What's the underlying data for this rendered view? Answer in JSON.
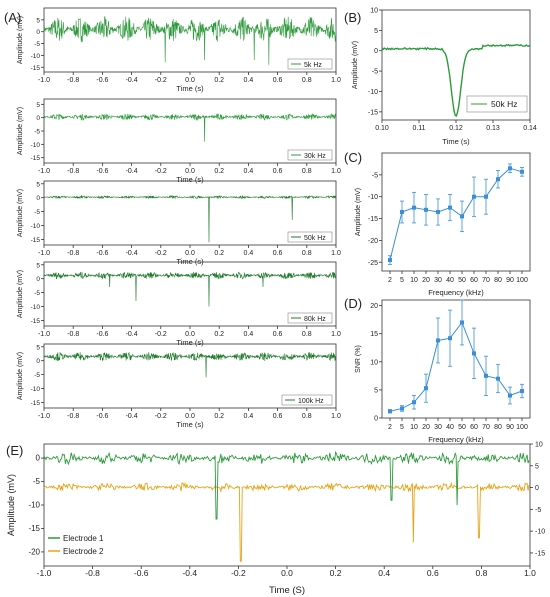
{
  "colors": {
    "green": "#2e9a3c",
    "darkgreen": "#1f7a2a",
    "orange": "#e8a317",
    "blue": "#3a8fd6",
    "axis": "#333333"
  },
  "panels": {
    "A": {
      "label": "(A)",
      "xlabel": "Time (s)",
      "ylabel": "Amplitude (mV)",
      "xlim": [
        -1.0,
        1.0
      ],
      "xticks": [
        "-1.0",
        "-0.8",
        "-0.6",
        "-0.4",
        "-0.2",
        "0.0",
        "0.2",
        "0.4",
        "0.6",
        "0.8",
        "1.0"
      ],
      "subplots": [
        {
          "legend": "5k Hz",
          "ylim": [
            -17,
            10
          ],
          "yticks": [
            5,
            0,
            -5,
            -10,
            -15
          ],
          "noise": 5.5,
          "baseline": 1.0,
          "spikes": [
            {
              "x": -0.17,
              "y": -13
            },
            {
              "x": 0.1,
              "y": -12
            },
            {
              "x": 0.44,
              "y": -12
            },
            {
              "x": 0.54,
              "y": -14
            }
          ]
        },
        {
          "legend": "30k Hz",
          "ylim": [
            -17,
            7
          ],
          "yticks": [
            5,
            0,
            -5,
            -10,
            -15
          ],
          "noise": 1.2,
          "baseline": 0.3,
          "spikes": [
            {
              "x": 0.1,
              "y": -9
            }
          ]
        },
        {
          "legend": "50k Hz",
          "ylim": [
            -17,
            6
          ],
          "yticks": [
            5,
            0,
            -5,
            -10,
            -15
          ],
          "noise": 0.5,
          "baseline": 0.2,
          "spikes": [
            {
              "x": 0.13,
              "y": -16
            },
            {
              "x": 0.7,
              "y": -8
            }
          ]
        },
        {
          "legend": "80k Hz",
          "ylim": [
            -17,
            6
          ],
          "yticks": [
            5,
            0,
            -5,
            -10,
            -15
          ],
          "noise": 1.3,
          "baseline": 1.2,
          "spikes": [
            {
              "x": -0.55,
              "y": -3
            },
            {
              "x": -0.37,
              "y": -8
            },
            {
              "x": 0.13,
              "y": -10
            },
            {
              "x": 0.5,
              "y": -3
            }
          ]
        },
        {
          "legend": "100k Hz",
          "ylim": [
            -17,
            6
          ],
          "yticks": [
            5,
            0,
            -5,
            -10,
            -15
          ],
          "noise": 1.6,
          "baseline": 1.5,
          "spikes": [
            {
              "x": 0.11,
              "y": -6
            }
          ]
        }
      ]
    },
    "B": {
      "label": "(B)",
      "xlabel": "Time (s)",
      "ylabel": "Amplitude (mV)",
      "legend": "50k Hz",
      "xlim": [
        0.1,
        0.14
      ],
      "ylim": [
        -17,
        10
      ],
      "xticks": [
        "0.10",
        "0.11",
        "0.12",
        "0.13",
        "0.14"
      ],
      "yticks": [
        10,
        5,
        0,
        -5,
        -10,
        -15
      ],
      "spike": {
        "center": 0.12,
        "min": -16,
        "width": 0.0018,
        "baseline": 0.5
      }
    },
    "C": {
      "label": "(C)",
      "xlabel": "Frequency (kHz)",
      "ylabel": "Amplitude (mV)",
      "ylim": [
        -27,
        0
      ],
      "yticks": [
        -5,
        -10,
        -15,
        -20,
        -25
      ],
      "categories": [
        "2",
        "5",
        "10",
        "20",
        "30",
        "40",
        "50",
        "60",
        "70",
        "80",
        "90",
        "100"
      ],
      "values": [
        -24.5,
        -13.5,
        -12.5,
        -13,
        -13.5,
        -12.5,
        -14.5,
        -10,
        -10,
        -6,
        -3.5,
        -4.3
      ],
      "errors": [
        1,
        2.5,
        3.5,
        3.5,
        3,
        3,
        3.5,
        4.5,
        4,
        2,
        1,
        1
      ]
    },
    "D": {
      "label": "(D)",
      "xlabel": "Frequency (kHz)",
      "ylabel": "SNR (%)",
      "ylim": [
        0,
        21
      ],
      "yticks": [
        0,
        5,
        10,
        15,
        20
      ],
      "categories": [
        "2",
        "5",
        "10",
        "20",
        "30",
        "40",
        "50",
        "60",
        "70",
        "80",
        "90",
        "100"
      ],
      "values": [
        1.2,
        1.7,
        2.8,
        5.3,
        13.8,
        14.2,
        17,
        11.5,
        7.5,
        7,
        4,
        4.8
      ],
      "errors": [
        0.3,
        0.5,
        1.2,
        2.5,
        4,
        5,
        4,
        4.5,
        3.5,
        2.5,
        1.5,
        1.2
      ]
    },
    "E": {
      "label": "(E)",
      "xlabel": "Time (S)",
      "ylabel": "Amplitude (mV)",
      "xlim": [
        -1.0,
        1.0
      ],
      "xticks": [
        "-1.0",
        "-0.8",
        "-0.6",
        "-0.4",
        "-0.2",
        "0.0",
        "0.2",
        "0.4",
        "0.6",
        "0.8",
        "1.0"
      ],
      "ylim_left": [
        -23,
        3
      ],
      "yticks_left": [
        0,
        -5,
        -10,
        -15,
        -20
      ],
      "ylim_right": [
        -18,
        10
      ],
      "yticks_right": [
        10,
        5,
        0,
        -5,
        -10,
        -15
      ],
      "legend": [
        "Electrode 1",
        "Electrode 2"
      ],
      "electrode1": {
        "baseline": 0,
        "noise": 1.3,
        "spikes": [
          {
            "x": -0.29,
            "y": -13
          },
          {
            "x": 0.43,
            "y": -9
          },
          {
            "x": 0.7,
            "y": -10
          }
        ]
      },
      "electrode2": {
        "baseline": -6.2,
        "noise": 0.9,
        "spikes": [
          {
            "x": -0.19,
            "y": -22
          },
          {
            "x": 0.52,
            "y": -18
          },
          {
            "x": 0.79,
            "y": -17
          }
        ]
      }
    }
  },
  "chart_data": [
    {
      "type": "line",
      "panel": "A",
      "legend": "5k Hz",
      "xlabel": "Time (s)",
      "ylabel": "Amplitude (mV)",
      "xlim": [
        -1,
        1
      ],
      "ylim": [
        -17,
        10
      ]
    },
    {
      "type": "line",
      "panel": "A",
      "legend": "30k Hz",
      "xlabel": "Time (s)",
      "ylabel": "Amplitude (mV)",
      "xlim": [
        -1,
        1
      ],
      "ylim": [
        -17,
        7
      ]
    },
    {
      "type": "line",
      "panel": "A",
      "legend": "50k Hz",
      "xlabel": "Time (s)",
      "ylabel": "Amplitude (mV)",
      "xlim": [
        -1,
        1
      ],
      "ylim": [
        -17,
        6
      ]
    },
    {
      "type": "line",
      "panel": "A",
      "legend": "80k Hz",
      "xlabel": "Time (s)",
      "ylabel": "Amplitude (mV)",
      "xlim": [
        -1,
        1
      ],
      "ylim": [
        -17,
        6
      ]
    },
    {
      "type": "line",
      "panel": "A",
      "legend": "100k Hz",
      "xlabel": "Time (s)",
      "ylabel": "Amplitude (mV)",
      "xlim": [
        -1,
        1
      ],
      "ylim": [
        -17,
        6
      ]
    },
    {
      "type": "line",
      "panel": "B",
      "legend": "50k Hz",
      "xlabel": "Time (s)",
      "ylabel": "Amplitude (mV)",
      "xlim": [
        0.1,
        0.14
      ],
      "ylim": [
        -17,
        10
      ]
    },
    {
      "type": "line",
      "panel": "C",
      "xlabel": "Frequency (kHz)",
      "ylabel": "Amplitude (mV)",
      "categories": [
        "2",
        "5",
        "10",
        "20",
        "30",
        "40",
        "50",
        "60",
        "70",
        "80",
        "90",
        "100"
      ],
      "values": [
        -24.5,
        -13.5,
        -12.5,
        -13,
        -13.5,
        -12.5,
        -14.5,
        -10,
        -10,
        -6,
        -3.5,
        -4.3
      ]
    },
    {
      "type": "line",
      "panel": "D",
      "xlabel": "Frequency (kHz)",
      "ylabel": "SNR (%)",
      "categories": [
        "2",
        "5",
        "10",
        "20",
        "30",
        "40",
        "50",
        "60",
        "70",
        "80",
        "90",
        "100"
      ],
      "values": [
        1.2,
        1.7,
        2.8,
        5.3,
        13.8,
        14.2,
        17,
        11.5,
        7.5,
        7,
        4,
        4.8
      ]
    },
    {
      "type": "line",
      "panel": "E",
      "xlabel": "Time (S)",
      "ylabel": "Amplitude (mV)",
      "series": [
        {
          "name": "Electrode 1"
        },
        {
          "name": "Electrode 2"
        }
      ],
      "xlim": [
        -1,
        1
      ]
    }
  ]
}
